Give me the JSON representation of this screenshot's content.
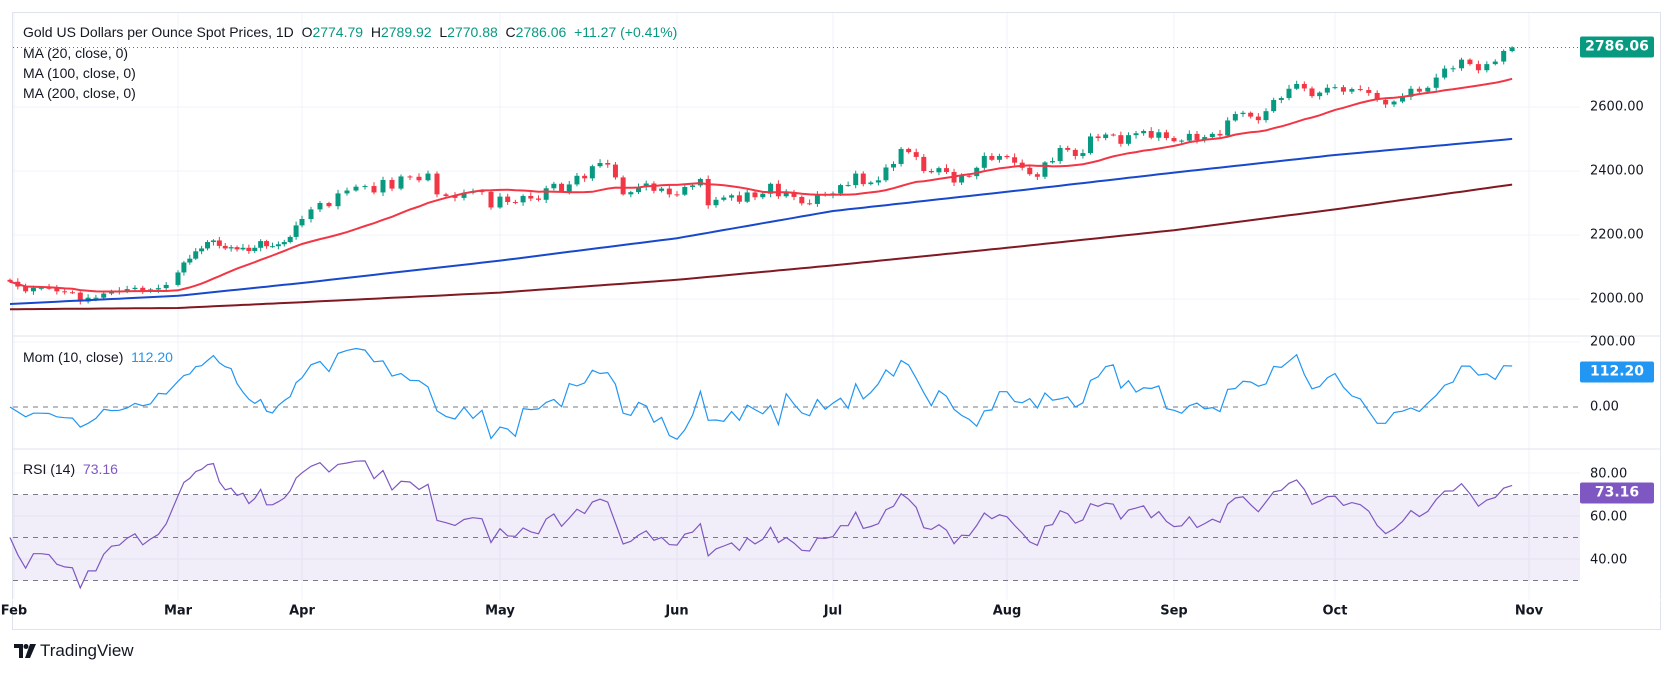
{
  "header": {
    "symbol_title": "Gold US Dollars per Ounce Spot Prices, 1D",
    "open_label": "O",
    "open": "2774.79",
    "high_label": "H",
    "high": "2789.92",
    "low_label": "L",
    "low": "2770.88",
    "close_label": "C",
    "close": "2786.06",
    "change": "+11.27 (+0.41%)"
  },
  "indicators": {
    "ma20": "MA (20, close, 0)",
    "ma100": "MA (100, close, 0)",
    "ma200": "MA (200, close, 0)",
    "mom_label": "Mom (10, close)",
    "mom_value": "112.20",
    "rsi_label": "RSI (14)",
    "rsi_value": "73.16"
  },
  "colors": {
    "up": "#089981",
    "down": "#f23645",
    "ma20": "#f23645",
    "ma100": "#1848cc",
    "ma200": "#801922",
    "mom": "#2196f3",
    "rsi": "#7e57c2",
    "last_price": "#089981"
  },
  "price_axis": [
    "2600.00",
    "2400.00",
    "2200.00",
    "2000.00"
  ],
  "last_price_tag": "2786.06",
  "mom_axis": [
    "200.00",
    "0.00"
  ],
  "mom_tag": "112.20",
  "rsi_axis": [
    "80.00",
    "60.00",
    "40.00"
  ],
  "rsi_tag": "73.16",
  "branding": "TradingView",
  "chart_data": {
    "type": "candlestick",
    "title": "Gold US Dollars per Ounce Spot Prices, 1D",
    "last_bar": {
      "open": 2774.79,
      "high": 2789.92,
      "low": 2770.88,
      "close": 2786.06
    },
    "price_ylim": [
      1940,
      2830
    ],
    "mom_ylim": [
      -110,
      210
    ],
    "rsi_ylim": [
      20,
      88
    ],
    "rsi_bands": [
      70,
      50,
      30
    ],
    "grid": true,
    "x_ticks": [
      "Feb",
      "Mar",
      "Apr",
      "May",
      "Jun",
      "Jul",
      "Aug",
      "Sep",
      "Oct",
      "Nov"
    ],
    "months": [
      {
        "label": "Feb",
        "closes": [
          2054,
          2039,
          2024,
          2035,
          2035,
          2034,
          2024,
          2021,
          2020,
          1992,
          2004,
          2004,
          2017,
          2024,
          2025,
          2031,
          2035,
          2025,
          2030,
          2034,
          2044
        ]
      },
      {
        "label": "Mar",
        "closes": [
          2083,
          2114,
          2126,
          2149,
          2158,
          2178,
          2183,
          2166,
          2158,
          2162,
          2155,
          2160,
          2150,
          2160,
          2181,
          2165,
          2165,
          2171,
          2178,
          2194,
          2230
        ]
      },
      {
        "label": "Apr",
        "closes": [
          2250,
          2280,
          2300,
          2290,
          2330,
          2339,
          2351,
          2353,
          2333,
          2372,
          2345,
          2383,
          2382,
          2371,
          2392,
          2327,
          2322,
          2316,
          2332,
          2337,
          2335,
          2286
        ]
      },
      {
        "label": "May",
        "closes": [
          2320,
          2303,
          2302,
          2322,
          2314,
          2310,
          2346,
          2360,
          2336,
          2358,
          2385,
          2377,
          2415,
          2425,
          2420,
          2380,
          2327,
          2334,
          2350,
          2361,
          2338,
          2345,
          2327
        ]
      },
      {
        "label": "Jun",
        "closes": [
          2326,
          2350,
          2355,
          2375,
          2293,
          2310,
          2317,
          2324,
          2304,
          2333,
          2318,
          2329,
          2360,
          2321,
          2334,
          2319,
          2299,
          2297,
          2327,
          2326
        ]
      },
      {
        "label": "Jul",
        "closes": [
          2330,
          2356,
          2356,
          2392,
          2359,
          2364,
          2371,
          2411,
          2422,
          2469,
          2459,
          2444,
          2400,
          2396,
          2409,
          2397,
          2364,
          2385,
          2384,
          2410,
          2447,
          2435,
          2447
        ]
      },
      {
        "label": "Aug",
        "closes": [
          2443,
          2426,
          2410,
          2390,
          2382,
          2427,
          2431,
          2472,
          2466,
          2447,
          2456,
          2508,
          2503,
          2514,
          2512,
          2485,
          2512,
          2518,
          2525,
          2504,
          2521,
          2503
        ]
      },
      {
        "label": "Sep",
        "closes": [
          2493,
          2495,
          2516,
          2497,
          2506,
          2516,
          2511,
          2558,
          2578,
          2582,
          2570,
          2559,
          2587,
          2622,
          2628,
          2657,
          2672,
          2658,
          2634,
          2645,
          2660
        ]
      },
      {
        "label": "Oct",
        "closes": [
          2662,
          2648,
          2656,
          2653,
          2644,
          2622,
          2608,
          2617,
          2632,
          2657,
          2648,
          2660,
          2692,
          2720,
          2721,
          2748,
          2734,
          2715,
          2734,
          2742,
          2775,
          2786.06
        ]
      }
    ],
    "ma100_monthly": [
      1985,
      2010,
      2050,
      2120,
      2190,
      2275,
      2335,
      2395,
      2450,
      2505
    ],
    "ma200_monthly": [
      1968,
      1972,
      1990,
      2020,
      2060,
      2105,
      2160,
      2215,
      2280,
      2365
    ]
  }
}
